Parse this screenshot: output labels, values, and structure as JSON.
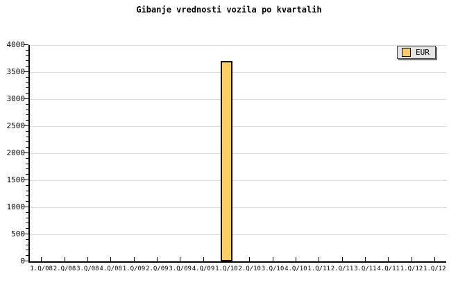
{
  "chart_data": {
    "type": "bar",
    "title": "Gibanje vrednosti vozila po kvartalih",
    "categories": [
      "1.Q/08",
      "2.Q/08",
      "3.Q/08",
      "4.Q/08",
      "1.Q/09",
      "2.Q/09",
      "3.Q/09",
      "4.Q/09",
      "1.Q/10",
      "2.Q/10",
      "3.Q/10",
      "4.Q/10",
      "1.Q/11",
      "2.Q/11",
      "3.Q/11",
      "4.Q/11",
      "1.Q/12",
      "1.Q/12"
    ],
    "series": [
      {
        "name": "EUR",
        "values": [
          null,
          null,
          null,
          null,
          null,
          null,
          null,
          null,
          3700,
          null,
          null,
          null,
          null,
          null,
          null,
          null,
          null,
          null
        ]
      }
    ],
    "xlabel": "",
    "ylabel": "",
    "ylim": [
      0,
      4000
    ],
    "ytick_step": 500,
    "ytick_minor_step": 100,
    "yticklabels": [
      "0",
      "500",
      "1000",
      "1500",
      "2000",
      "2500",
      "3000",
      "3500",
      "4000"
    ],
    "grid": "horizontal-major",
    "legend_position": "top-right"
  },
  "colors": {
    "bar_fill": "#FFCC66",
    "bar_border": "#000000",
    "gridline": "#DCDCDC",
    "axis": "#000000",
    "background": "#FFFFFF",
    "legend_bg": "#E6E6E6",
    "text": "#000000"
  }
}
